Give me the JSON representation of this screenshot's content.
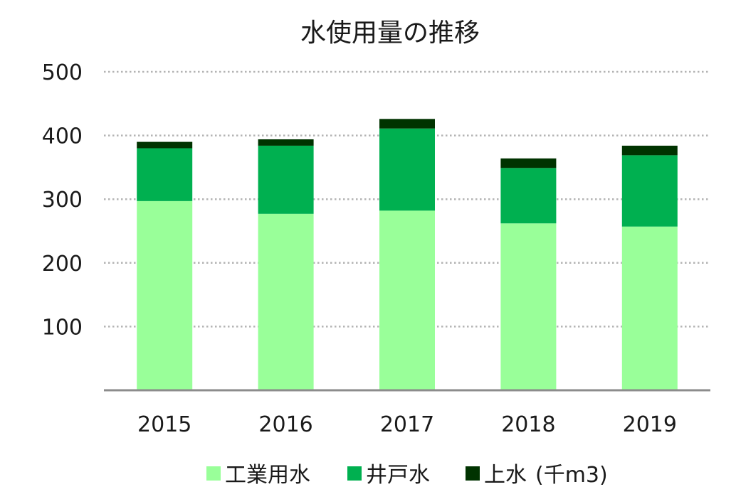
{
  "chart_data": {
    "type": "bar",
    "stacked": true,
    "title": "水使用量の推移",
    "categories": [
      "2015",
      "2016",
      "2017",
      "2018",
      "2019"
    ],
    "series": [
      {
        "name": "工業用水",
        "color": "#99ff99",
        "values": [
          297,
          277,
          282,
          262,
          257
        ]
      },
      {
        "name": "井戸水",
        "color": "#00b050",
        "values": [
          83,
          107,
          129,
          87,
          112
        ]
      },
      {
        "name": "上水",
        "color": "#003300",
        "values": [
          10,
          10,
          15,
          15,
          15
        ]
      }
    ],
    "unit_note": "(千m3)",
    "ylim": [
      0,
      500
    ],
    "yticks": [
      100,
      200,
      300,
      400,
      500
    ],
    "grid": true,
    "legend_position": "bottom"
  }
}
